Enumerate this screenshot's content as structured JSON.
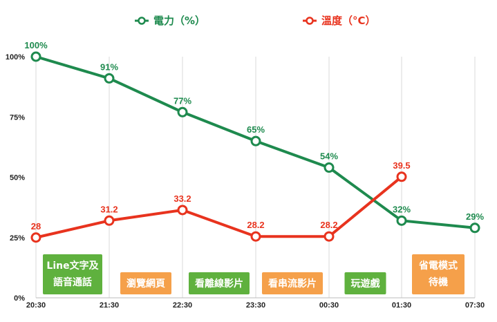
{
  "chart_data": {
    "type": "line",
    "title": "",
    "x": [
      "20:30",
      "21:30",
      "22:30",
      "23:30",
      "00:30",
      "01:30",
      "07:30"
    ],
    "y_ticks": [
      "0%",
      "25%",
      "50%",
      "75%",
      "100%"
    ],
    "ylim": [
      0,
      100
    ],
    "grid": "vertical",
    "legend_position": "top",
    "series": [
      {
        "name": "電力（%）",
        "color": "#1e8a4e",
        "values": [
          100,
          91,
          77,
          65,
          54,
          32,
          29
        ],
        "labels": [
          "100%",
          "91%",
          "77%",
          "65%",
          "54%",
          "32%",
          "29%"
        ]
      },
      {
        "name": "溫度（°C）",
        "color": "#e8331e",
        "values": [
          28,
          31.2,
          33.2,
          28.2,
          28.2,
          39.5,
          null
        ],
        "labels": [
          "28",
          "31.2",
          "33.2",
          "28.2",
          "28.2",
          "39.5",
          ""
        ]
      }
    ],
    "activities": [
      {
        "lines": [
          "Line文字及",
          "語音通話"
        ],
        "color": "#5fb13e"
      },
      {
        "lines": [
          "瀏覽網頁"
        ],
        "color": "#f5a04a"
      },
      {
        "lines": [
          "看離線影片"
        ],
        "color": "#5fb13e"
      },
      {
        "lines": [
          "看串流影片"
        ],
        "color": "#f5a04a"
      },
      {
        "lines": [
          "玩遊戲"
        ],
        "color": "#5fb13e"
      },
      {
        "lines": [
          "省電模式",
          "待機"
        ],
        "color": "#f5a04a"
      }
    ]
  }
}
